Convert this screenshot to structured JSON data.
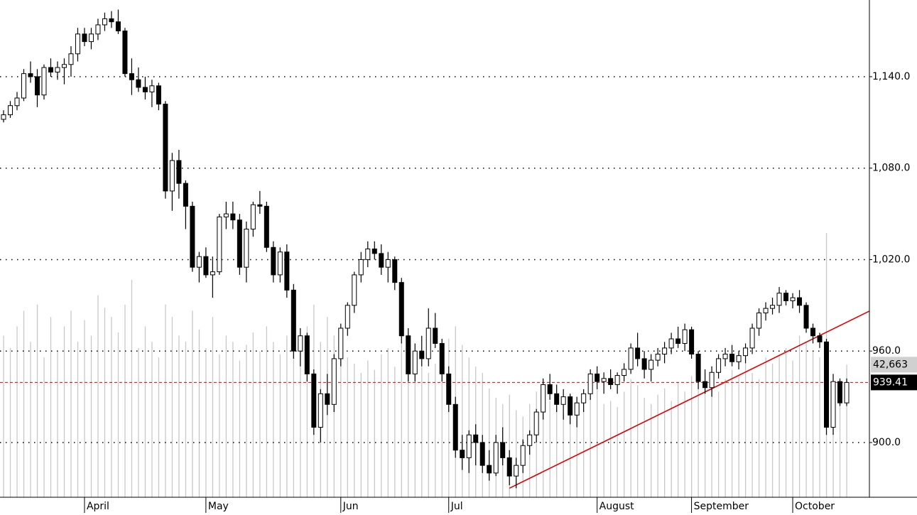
{
  "chart_data": {
    "type": "candlestick",
    "open": [
      1112,
      1115,
      1121,
      1126,
      1142,
      1140,
      1128,
      1146,
      1143,
      1146,
      1148,
      1155,
      1168,
      1163,
      1168,
      1174,
      1178,
      1176,
      1170,
      1142,
      1138,
      1133,
      1130,
      1134,
      1122,
      1065,
      1085,
      1070,
      1055,
      1015,
      1022,
      1010,
      1012,
      1048,
      1050,
      1046,
      1015,
      1040,
      1056,
      1055,
      1028,
      1010,
      1025,
      1000,
      960,
      970,
      945,
      910,
      932,
      925,
      955,
      975,
      990,
      1010,
      1020,
      1027,
      1024,
      1015,
      1020,
      1005,
      970,
      945,
      960,
      955,
      975,
      965,
      945,
      925,
      895,
      890,
      905,
      900,
      885,
      880,
      900,
      890,
      878,
      885,
      898,
      905,
      920,
      938,
      932,
      925,
      930,
      918,
      926,
      932,
      945,
      940,
      942,
      938,
      944,
      948,
      962,
      955,
      948,
      954,
      958,
      962,
      968,
      965,
      974,
      958,
      940,
      936,
      946,
      955,
      958,
      953,
      957,
      962,
      975,
      985,
      988,
      990,
      998,
      993,
      995,
      990,
      975,
      970,
      966,
      910,
      940,
      926
    ],
    "high": [
      1118,
      1124,
      1130,
      1145,
      1150,
      1145,
      1148,
      1152,
      1150,
      1152,
      1160,
      1172,
      1172,
      1172,
      1178,
      1182,
      1183,
      1184,
      1172,
      1152,
      1146,
      1140,
      1138,
      1136,
      1124,
      1090,
      1092,
      1072,
      1058,
      1025,
      1028,
      1022,
      1050,
      1058,
      1058,
      1050,
      1045,
      1058,
      1065,
      1058,
      1032,
      1028,
      1030,
      1004,
      975,
      972,
      948,
      935,
      945,
      958,
      978,
      992,
      1012,
      1025,
      1032,
      1032,
      1030,
      1025,
      1022,
      1008,
      975,
      965,
      970,
      988,
      985,
      968,
      950,
      930,
      905,
      908,
      912,
      905,
      895,
      905,
      910,
      895,
      890,
      902,
      908,
      922,
      942,
      945,
      938,
      935,
      932,
      930,
      935,
      948,
      950,
      946,
      948,
      946,
      952,
      965,
      972,
      960,
      958,
      962,
      966,
      972,
      976,
      978,
      976,
      960,
      948,
      950,
      958,
      962,
      964,
      960,
      965,
      978,
      988,
      992,
      995,
      1002,
      1000,
      998,
      1000,
      992,
      978,
      972,
      968,
      945,
      942,
      942
    ],
    "low": [
      1110,
      1113,
      1118,
      1124,
      1136,
      1120,
      1125,
      1140,
      1138,
      1135,
      1140,
      1150,
      1160,
      1158,
      1164,
      1170,
      1172,
      1168,
      1140,
      1128,
      1130,
      1125,
      1120,
      1118,
      1060,
      1052,
      1060,
      1040,
      1012,
      1005,
      1008,
      995,
      1010,
      1040,
      1040,
      1010,
      1005,
      1035,
      1050,
      1025,
      1005,
      1005,
      995,
      955,
      950,
      940,
      905,
      900,
      918,
      920,
      950,
      970,
      985,
      1005,
      1015,
      1020,
      1010,
      1005,
      1000,
      965,
      940,
      940,
      950,
      950,
      962,
      940,
      920,
      890,
      882,
      880,
      885,
      880,
      875,
      878,
      885,
      872,
      870,
      880,
      892,
      900,
      915,
      928,
      920,
      915,
      912,
      910,
      920,
      928,
      935,
      932,
      935,
      932,
      940,
      945,
      950,
      942,
      940,
      950,
      952,
      958,
      962,
      960,
      955,
      935,
      932,
      930,
      942,
      950,
      950,
      948,
      952,
      958,
      970,
      980,
      984,
      985,
      990,
      988,
      985,
      972,
      965,
      962,
      905,
      905,
      924,
      924
    ],
    "close": [
      1115,
      1121,
      1126,
      1142,
      1140,
      1128,
      1146,
      1143,
      1146,
      1148,
      1155,
      1168,
      1163,
      1168,
      1174,
      1178,
      1176,
      1170,
      1142,
      1138,
      1133,
      1130,
      1134,
      1122,
      1065,
      1085,
      1070,
      1055,
      1015,
      1022,
      1010,
      1012,
      1048,
      1050,
      1046,
      1015,
      1040,
      1056,
      1055,
      1028,
      1010,
      1025,
      1000,
      960,
      970,
      945,
      910,
      932,
      925,
      955,
      975,
      990,
      1010,
      1020,
      1027,
      1024,
      1015,
      1020,
      1005,
      970,
      945,
      960,
      955,
      975,
      965,
      945,
      925,
      895,
      890,
      905,
      900,
      885,
      880,
      900,
      890,
      878,
      885,
      898,
      905,
      920,
      938,
      932,
      925,
      930,
      918,
      926,
      932,
      945,
      940,
      942,
      938,
      944,
      948,
      962,
      955,
      948,
      954,
      958,
      962,
      968,
      965,
      974,
      958,
      940,
      936,
      946,
      955,
      958,
      953,
      957,
      962,
      975,
      985,
      988,
      990,
      998,
      993,
      995,
      990,
      975,
      970,
      966,
      910,
      940,
      926,
      939.41
    ],
    "volume": [
      52000,
      48000,
      55000,
      60000,
      50000,
      62000,
      45000,
      58000,
      47000,
      55000,
      60000,
      50000,
      57000,
      52000,
      65000,
      61000,
      58000,
      53000,
      62000,
      70000,
      48000,
      55000,
      50000,
      45000,
      62000,
      58000,
      52000,
      50000,
      60000,
      54000,
      48000,
      58000,
      46000,
      52000,
      50000,
      44000,
      49000,
      53000,
      47000,
      55000,
      50000,
      46000,
      52000,
      60000,
      48000,
      55000,
      62000,
      50000,
      58000,
      52000,
      47000,
      45000,
      43000,
      40000,
      44000,
      41000,
      46000,
      48000,
      42000,
      50000,
      53000,
      46000,
      44000,
      40000,
      43000,
      47000,
      51000,
      55000,
      49000,
      45000,
      42000,
      40000,
      35000,
      32000,
      30000,
      33000,
      28000,
      26000,
      30000,
      34000,
      36000,
      31000,
      29000,
      27000,
      33000,
      30000,
      28000,
      32000,
      35000,
      30000,
      31000,
      29000,
      34000,
      38000,
      36000,
      32000,
      30000,
      33000,
      35000,
      31000,
      37000,
      34000,
      39000,
      42000,
      40000,
      36000,
      34000,
      38000,
      41000,
      39000,
      44000,
      40000,
      38000,
      45000,
      43000,
      46000,
      48000,
      44000,
      52000,
      50000,
      47000,
      45000,
      85000,
      36000,
      32000,
      {
        "value": 42663,
        "label": "42,663"
      }
    ],
    "month_ticks": [
      {
        "index": 12,
        "label": "April"
      },
      {
        "index": 30,
        "label": "May"
      },
      {
        "index": 50,
        "label": "Jun"
      },
      {
        "index": 66,
        "label": "Jul"
      },
      {
        "index": 88,
        "label": "August"
      },
      {
        "index": 102,
        "label": "September"
      },
      {
        "index": 117,
        "label": "October"
      }
    ],
    "ylim": [
      864.1,
      1190.3
    ],
    "yticks": [
      {
        "value": 900,
        "label": "900.0"
      },
      {
        "value": 960,
        "label": "960.0"
      },
      {
        "value": 1020,
        "label": "1,020.0"
      },
      {
        "value": 1080,
        "label": "1,080.0"
      },
      {
        "value": 1140,
        "label": "1,140.0"
      }
    ],
    "volume_lim": [
      0,
      160000
    ],
    "grid": true,
    "trendline": {
      "points": [
        [
          75,
          870
        ],
        [
          120,
          968
        ]
      ],
      "color": "#e00000"
    },
    "last_line_color": "#e00000"
  }
}
